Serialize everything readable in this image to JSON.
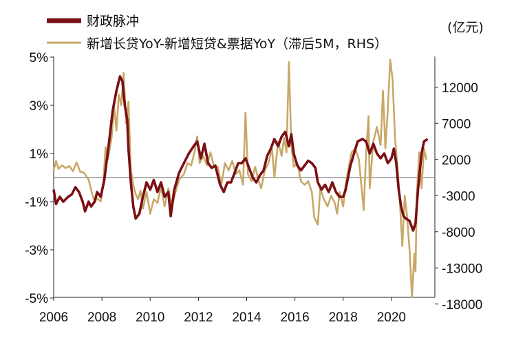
{
  "chart_data": {
    "type": "line",
    "unit_right": "(亿元)",
    "x_ticks": [
      "2006",
      "2008",
      "2010",
      "2012",
      "2014",
      "2016",
      "2018",
      "2020"
    ],
    "y_left_ticks": [
      "5%",
      "3%",
      "1%",
      "-1%",
      "-3%",
      "-5%"
    ],
    "y_right_ticks": [
      "12000",
      "7000",
      "2000",
      "-3000",
      "-8000",
      "-13000",
      "-18000"
    ],
    "y_left_range": [
      -5,
      5
    ],
    "y_right_range": [
      -18000,
      15000
    ],
    "x_range": [
      2006.0,
      2021.8
    ],
    "legend_position": "top-left",
    "colors": {
      "fiscal": "#7b0f14",
      "loan": "#c8a868",
      "zero_line": "#666666"
    },
    "series": [
      {
        "name": "财政脉冲",
        "axis": "left",
        "points": [
          [
            2006.0,
            -0.5
          ],
          [
            2006.1,
            -1.1
          ],
          [
            2006.25,
            -0.8
          ],
          [
            2006.4,
            -1.0
          ],
          [
            2006.6,
            -0.8
          ],
          [
            2006.75,
            -0.7
          ],
          [
            2006.9,
            -0.4
          ],
          [
            2007.05,
            -0.6
          ],
          [
            2007.2,
            -1.0
          ],
          [
            2007.3,
            -1.4
          ],
          [
            2007.45,
            -1.0
          ],
          [
            2007.55,
            -1.2
          ],
          [
            2007.7,
            -1.0
          ],
          [
            2007.8,
            -0.6
          ],
          [
            2007.95,
            -0.8
          ],
          [
            2008.1,
            -0.1
          ],
          [
            2008.3,
            1.5
          ],
          [
            2008.45,
            2.8
          ],
          [
            2008.6,
            3.6
          ],
          [
            2008.75,
            4.2
          ],
          [
            2008.85,
            4.0
          ],
          [
            2008.95,
            3.0
          ],
          [
            2009.05,
            2.4
          ],
          [
            2009.1,
            1.2
          ],
          [
            2009.2,
            -0.2
          ],
          [
            2009.3,
            -1.2
          ],
          [
            2009.4,
            -1.7
          ],
          [
            2009.55,
            -1.5
          ],
          [
            2009.7,
            -0.8
          ],
          [
            2009.85,
            -0.2
          ],
          [
            2010.0,
            -0.5
          ],
          [
            2010.15,
            -0.1
          ],
          [
            2010.3,
            -0.6
          ],
          [
            2010.45,
            -0.2
          ],
          [
            2010.6,
            -0.8
          ],
          [
            2010.75,
            -0.6
          ],
          [
            2010.85,
            -1.6
          ],
          [
            2011.0,
            -0.5
          ],
          [
            2011.2,
            0.2
          ],
          [
            2011.4,
            0.6
          ],
          [
            2011.6,
            1.0
          ],
          [
            2011.8,
            1.3
          ],
          [
            2011.95,
            1.5
          ],
          [
            2012.1,
            0.8
          ],
          [
            2012.25,
            1.4
          ],
          [
            2012.4,
            0.6
          ],
          [
            2012.55,
            0.4
          ],
          [
            2012.7,
            0.5
          ],
          [
            2012.9,
            -0.3
          ],
          [
            2013.05,
            -0.6
          ],
          [
            2013.2,
            -0.2
          ],
          [
            2013.35,
            -0.2
          ],
          [
            2013.5,
            0.2
          ],
          [
            2013.65,
            0.6
          ],
          [
            2013.8,
            0.6
          ],
          [
            2013.95,
            0.8
          ],
          [
            2014.1,
            0.4
          ],
          [
            2014.25,
            0.0
          ],
          [
            2014.4,
            -0.2
          ],
          [
            2014.55,
            0.1
          ],
          [
            2014.7,
            0.3
          ],
          [
            2014.85,
            0.9
          ],
          [
            2015.0,
            1.2
          ],
          [
            2015.15,
            1.6
          ],
          [
            2015.3,
            1.3
          ],
          [
            2015.45,
            1.7
          ],
          [
            2015.6,
            1.9
          ],
          [
            2015.75,
            1.3
          ],
          [
            2015.85,
            1.8
          ],
          [
            2015.95,
            1.0
          ],
          [
            2016.1,
            0.5
          ],
          [
            2016.25,
            0.3
          ],
          [
            2016.4,
            0.5
          ],
          [
            2016.55,
            0.7
          ],
          [
            2016.7,
            0.6
          ],
          [
            2016.85,
            0.4
          ],
          [
            2016.95,
            -0.2
          ],
          [
            2017.1,
            -0.5
          ],
          [
            2017.25,
            -0.3
          ],
          [
            2017.4,
            -0.6
          ],
          [
            2017.55,
            -0.2
          ],
          [
            2017.7,
            -0.6
          ],
          [
            2017.85,
            -0.8
          ],
          [
            2018.0,
            -0.8
          ],
          [
            2018.1,
            -0.5
          ],
          [
            2018.3,
            0.5
          ],
          [
            2018.45,
            1.0
          ],
          [
            2018.6,
            1.5
          ],
          [
            2018.8,
            1.6
          ],
          [
            2018.95,
            1.5
          ],
          [
            2019.1,
            1.0
          ],
          [
            2019.25,
            1.4
          ],
          [
            2019.4,
            1.0
          ],
          [
            2019.55,
            0.8
          ],
          [
            2019.7,
            1.0
          ],
          [
            2019.85,
            0.6
          ],
          [
            2020.0,
            0.8
          ],
          [
            2020.1,
            1.2
          ],
          [
            2020.2,
            0.6
          ],
          [
            2020.3,
            -0.5
          ],
          [
            2020.4,
            -1.2
          ],
          [
            2020.5,
            -1.6
          ],
          [
            2020.6,
            -1.7
          ],
          [
            2020.75,
            -1.8
          ],
          [
            2020.9,
            -2.2
          ],
          [
            2021.0,
            -1.9
          ],
          [
            2021.1,
            -0.5
          ],
          [
            2021.25,
            1.0
          ],
          [
            2021.35,
            1.5
          ],
          [
            2021.5,
            1.6
          ]
        ]
      },
      {
        "name": "新增长贷YoY-新增短贷&票据YoY（滞后5M，RHS）",
        "axis": "right",
        "points": [
          [
            2006.0,
            500
          ],
          [
            2006.1,
            1800
          ],
          [
            2006.2,
            700
          ],
          [
            2006.35,
            1200
          ],
          [
            2006.5,
            800
          ],
          [
            2006.65,
            1100
          ],
          [
            2006.8,
            400
          ],
          [
            2006.95,
            1600
          ],
          [
            2007.1,
            300
          ],
          [
            2007.25,
            200
          ],
          [
            2007.45,
            -800
          ],
          [
            2007.6,
            -2800
          ],
          [
            2007.7,
            -3800
          ],
          [
            2007.8,
            -3400
          ],
          [
            2007.95,
            -3800
          ],
          [
            2008.05,
            -1600
          ],
          [
            2008.15,
            3700
          ],
          [
            2008.25,
            2000
          ],
          [
            2008.4,
            5000
          ],
          [
            2008.5,
            9500
          ],
          [
            2008.6,
            6000
          ],
          [
            2008.7,
            11000
          ],
          [
            2008.8,
            9500
          ],
          [
            2008.9,
            14000
          ],
          [
            2009.0,
            7000
          ],
          [
            2009.1,
            10000
          ],
          [
            2009.2,
            500
          ],
          [
            2009.3,
            -1500
          ],
          [
            2009.4,
            -2800
          ],
          [
            2009.5,
            -3500
          ],
          [
            2009.6,
            -2300
          ],
          [
            2009.7,
            -4800
          ],
          [
            2009.85,
            -2500
          ],
          [
            2010.0,
            -5500
          ],
          [
            2010.15,
            -3500
          ],
          [
            2010.3,
            -4000
          ],
          [
            2010.45,
            -1800
          ],
          [
            2010.6,
            -4500
          ],
          [
            2010.75,
            -2000
          ],
          [
            2010.9,
            -4500
          ],
          [
            2011.05,
            -2500
          ],
          [
            2011.2,
            -800
          ],
          [
            2011.4,
            0
          ],
          [
            2011.55,
            1500
          ],
          [
            2011.7,
            1200
          ],
          [
            2011.85,
            3200
          ],
          [
            2011.95,
            5200
          ],
          [
            2012.05,
            1500
          ],
          [
            2012.2,
            2500
          ],
          [
            2012.35,
            1200
          ],
          [
            2012.5,
            3000
          ],
          [
            2012.65,
            1000
          ],
          [
            2012.8,
            1000
          ],
          [
            2012.95,
            -1500
          ],
          [
            2013.1,
            1500
          ],
          [
            2013.25,
            500
          ],
          [
            2013.4,
            1800
          ],
          [
            2013.55,
            0
          ],
          [
            2013.7,
            500
          ],
          [
            2013.85,
            -1500
          ],
          [
            2013.95,
            8500
          ],
          [
            2014.05,
            0
          ],
          [
            2014.2,
            -1000
          ],
          [
            2014.35,
            1000
          ],
          [
            2014.5,
            -1000
          ],
          [
            2014.6,
            -2000
          ],
          [
            2014.75,
            500
          ],
          [
            2014.9,
            1500
          ],
          [
            2015.05,
            3500
          ],
          [
            2015.15,
            -500
          ],
          [
            2015.3,
            4500
          ],
          [
            2015.45,
            2500
          ],
          [
            2015.55,
            5000
          ],
          [
            2015.65,
            3000
          ],
          [
            2015.75,
            15500
          ],
          [
            2015.85,
            4000
          ],
          [
            2015.95,
            1000
          ],
          [
            2016.1,
            1500
          ],
          [
            2016.25,
            -1000
          ],
          [
            2016.4,
            -1500
          ],
          [
            2016.55,
            -1000
          ],
          [
            2016.7,
            -2500
          ],
          [
            2016.8,
            -6000
          ],
          [
            2016.95,
            -7000
          ],
          [
            2017.05,
            -2000
          ],
          [
            2017.2,
            -3500
          ],
          [
            2017.35,
            -4500
          ],
          [
            2017.5,
            -3000
          ],
          [
            2017.65,
            -4000
          ],
          [
            2017.75,
            -5500
          ],
          [
            2017.85,
            -2500
          ],
          [
            2018.0,
            -4500
          ],
          [
            2018.1,
            -1500
          ],
          [
            2018.2,
            500
          ],
          [
            2018.35,
            3000
          ],
          [
            2018.5,
            3500
          ],
          [
            2018.65,
            2000
          ],
          [
            2018.75,
            -1500
          ],
          [
            2018.85,
            -5000
          ],
          [
            2018.95,
            3000
          ],
          [
            2019.05,
            8000
          ],
          [
            2019.1,
            -2000
          ],
          [
            2019.25,
            4500
          ],
          [
            2019.4,
            6500
          ],
          [
            2019.55,
            4000
          ],
          [
            2019.65,
            11500
          ],
          [
            2019.75,
            3500
          ],
          [
            2019.85,
            9000
          ],
          [
            2019.95,
            15800
          ],
          [
            2020.05,
            13000
          ],
          [
            2020.15,
            5000
          ],
          [
            2020.25,
            1000
          ],
          [
            2020.35,
            -4000
          ],
          [
            2020.45,
            -10000
          ],
          [
            2020.55,
            -3000
          ],
          [
            2020.65,
            -6000
          ],
          [
            2020.75,
            -10500
          ],
          [
            2020.85,
            -18000
          ],
          [
            2020.95,
            -11000
          ],
          [
            2021.0,
            -13500
          ],
          [
            2021.05,
            -3000
          ],
          [
            2021.15,
            3000
          ],
          [
            2021.25,
            -2000
          ],
          [
            2021.35,
            3500
          ],
          [
            2021.45,
            2000
          ]
        ]
      }
    ]
  }
}
